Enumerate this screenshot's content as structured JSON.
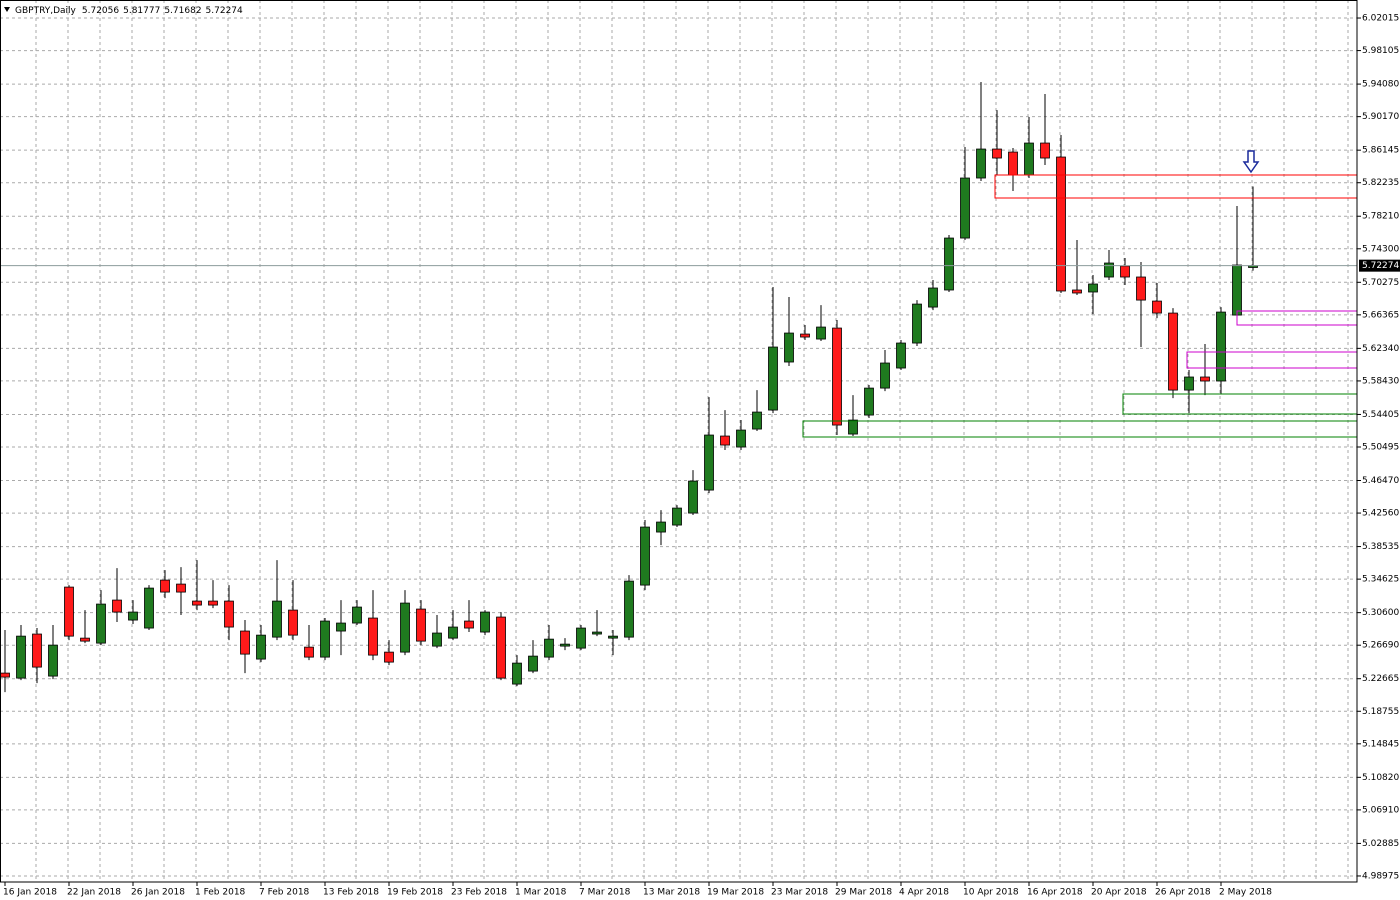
{
  "chart_data": {
    "type": "candlestick",
    "title": "GBPTRY,Daily",
    "categories": [
      "16 Jan 2018",
      null,
      null,
      null,
      "22 Jan 2018",
      null,
      null,
      null,
      "26 Jan 2018",
      null,
      null,
      null,
      "1 Feb 2018",
      null,
      null,
      null,
      "7 Feb 2018",
      null,
      null,
      null,
      "13 Feb 2018",
      null,
      null,
      null,
      "19 Feb 2018",
      null,
      null,
      null,
      "23 Feb 2018",
      null,
      null,
      null,
      "1 Mar 2018",
      null,
      null,
      null,
      "7 Mar 2018",
      null,
      null,
      null,
      "13 Mar 2018",
      null,
      null,
      null,
      "19 Mar 2018",
      null,
      null,
      null,
      "23 Mar 2018",
      null,
      null,
      null,
      "29 Mar 2018",
      null,
      null,
      null,
      "4 Apr 2018",
      null,
      null,
      null,
      "10 Apr 2018",
      null,
      null,
      null,
      "16 Apr 2018",
      null,
      null,
      null,
      "20 Apr 2018",
      null,
      null,
      null,
      "26 Apr 2018",
      null,
      null,
      null,
      "2 May 2018",
      null,
      null
    ],
    "open": [
      5.2334,
      5.2274,
      5.2803,
      5.2298,
      5.3367,
      5.2754,
      5.2694,
      5.3211,
      5.2971,
      5.2875,
      5.3451,
      5.3403,
      5.3199,
      5.3199,
      5.3199,
      5.2839,
      5.2502,
      5.2766,
      5.3091,
      5.2646,
      5.2526,
      5.2839,
      5.2935,
      5.2995,
      5.2586,
      5.2586,
      5.3103,
      5.2658,
      5.2754,
      5.2959,
      5.2827,
      5.3007,
      5.2202,
      5.2358,
      5.2526,
      5.2658,
      5.2634,
      5.2803,
      5.2754,
      5.2766,
      5.3391,
      5.4028,
      5.4112,
      5.4256,
      5.4532,
      5.5181,
      5.5049,
      5.5265,
      5.5493,
      5.607,
      5.6406,
      5.6346,
      5.6478,
      5.5205,
      5.5433,
      5.5757,
      5.5998,
      5.6298,
      5.673,
      5.6935,
      5.7559,
      5.828,
      5.8628,
      5.8592,
      5.8316,
      5.87,
      5.8532,
      5.6935,
      5.6911,
      5.7091,
      5.7223,
      5.7091,
      5.6802,
      5.6658,
      5.5733,
      5.589,
      5.5842,
      5.6634,
      5.72056
    ],
    "high": [
      5.2851,
      5.2911,
      5.2875,
      5.2911,
      5.3391,
      5.3091,
      5.3331,
      5.3595,
      5.3211,
      5.3391,
      5.3571,
      5.3607,
      5.3691,
      5.3451,
      5.3391,
      5.2971,
      5.2911,
      5.3691,
      5.3451,
      5.2911,
      5.2995,
      5.3211,
      5.3211,
      5.3331,
      5.273,
      5.3331,
      5.3211,
      5.3031,
      5.3091,
      5.3211,
      5.3091,
      5.3067,
      5.255,
      5.273,
      5.2911,
      5.2754,
      5.2911,
      5.3091,
      5.2851,
      5.3511,
      5.4172,
      5.4292,
      5.4352,
      5.4772,
      5.5649,
      5.5493,
      5.5373,
      5.5733,
      5.6971,
      5.6851,
      5.6514,
      5.6754,
      5.6574,
      5.5673,
      5.5794,
      5.6214,
      5.6334,
      5.6814,
      5.7055,
      5.7595,
      5.8652,
      5.9433,
      5.9096,
      5.864,
      5.9013,
      5.9289,
      5.8796,
      5.7535,
      5.7115,
      5.7415,
      5.7319,
      5.7271,
      5.7019,
      5.6718,
      5.5974,
      5.6286,
      5.673,
      5.7944,
      5.81777
    ],
    "low": [
      5.2106,
      5.225,
      5.2214,
      5.2262,
      5.273,
      5.2694,
      5.267,
      5.2947,
      5.2923,
      5.2851,
      5.3235,
      5.3031,
      5.3091,
      5.3115,
      5.273,
      5.2334,
      5.2466,
      5.273,
      5.273,
      5.249,
      5.249,
      5.255,
      5.2911,
      5.249,
      5.243,
      5.255,
      5.267,
      5.2634,
      5.273,
      5.2827,
      5.279,
      5.225,
      5.2178,
      5.2334,
      5.249,
      5.261,
      5.261,
      5.2778,
      5.255,
      5.273,
      5.3331,
      5.3871,
      5.4088,
      5.4232,
      5.4496,
      5.5013,
      5.5013,
      5.5241,
      5.5457,
      5.6022,
      5.6334,
      5.6322,
      5.5193,
      5.5181,
      5.5397,
      5.5721,
      5.5974,
      5.6262,
      5.6694,
      5.6911,
      5.7535,
      5.8244,
      5.8316,
      5.8124,
      5.828,
      5.8436,
      5.6899,
      5.6875,
      5.6646,
      5.7055,
      5.6995,
      5.625,
      5.6598,
      5.5637,
      5.5457,
      5.5673,
      5.5685,
      5.6598,
      5.71682
    ],
    "close": [
      5.2286,
      5.2778,
      5.2406,
      5.267,
      5.2778,
      5.2718,
      5.3163,
      5.3067,
      5.3067,
      5.3355,
      5.3307,
      5.3307,
      5.3151,
      5.3151,
      5.2887,
      5.2562,
      5.279,
      5.3199,
      5.279,
      5.2526,
      5.2959,
      5.2935,
      5.3127,
      5.255,
      5.2466,
      5.3175,
      5.2718,
      5.2815,
      5.2887,
      5.2875,
      5.3067,
      5.2274,
      5.2454,
      5.2538,
      5.2742,
      5.2682,
      5.2875,
      5.2827,
      5.2778,
      5.3439,
      5.4088,
      5.4148,
      5.4316,
      5.464,
      5.5193,
      5.5073,
      5.5253,
      5.5469,
      5.625,
      5.6418,
      5.637,
      5.649,
      5.5313,
      5.5373,
      5.5757,
      5.6058,
      5.6298,
      5.6766,
      5.6959,
      5.7559,
      5.828,
      5.8628,
      5.852,
      5.8316,
      5.87,
      5.852,
      5.6923,
      5.6899,
      5.7007,
      5.7259,
      5.7091,
      5.6814,
      5.6658,
      5.5733,
      5.589,
      5.5842,
      5.667,
      5.7235,
      5.72274
    ],
    "up_color": "#1f7a1f",
    "down_color": "#ff1a1a",
    "ylim": [
      4.9825,
      6.0418
    ],
    "yticks": [
      4.98975,
      5.02885,
      {
        "value": 5.0691,
        "label": "5.06910"
      },
      {
        "value": 5.1082,
        "label": "5.10820"
      },
      5.14845,
      5.18755,
      5.22665,
      {
        "value": 5.2669,
        "label": "5.26690"
      },
      {
        "value": 5.306,
        "label": "5.30600"
      },
      5.34625,
      5.38535,
      {
        "value": 5.4256,
        "label": "5.42560"
      },
      {
        "value": 5.4647,
        "label": "5.46470"
      },
      5.50495,
      5.54405,
      {
        "value": 5.5843,
        "label": "5.58430"
      },
      {
        "value": 5.6234,
        "label": "5.62340"
      },
      5.66365,
      5.70275,
      {
        "value": 5.743,
        "label": "5.74300"
      },
      {
        "value": 5.7821,
        "label": "5.78210"
      },
      5.82235,
      5.86145,
      {
        "value": 5.9017,
        "label": "5.90170"
      },
      {
        "value": 5.9408,
        "label": "5.94080"
      },
      5.98105,
      6.02015
    ],
    "grid": true
  }
}
